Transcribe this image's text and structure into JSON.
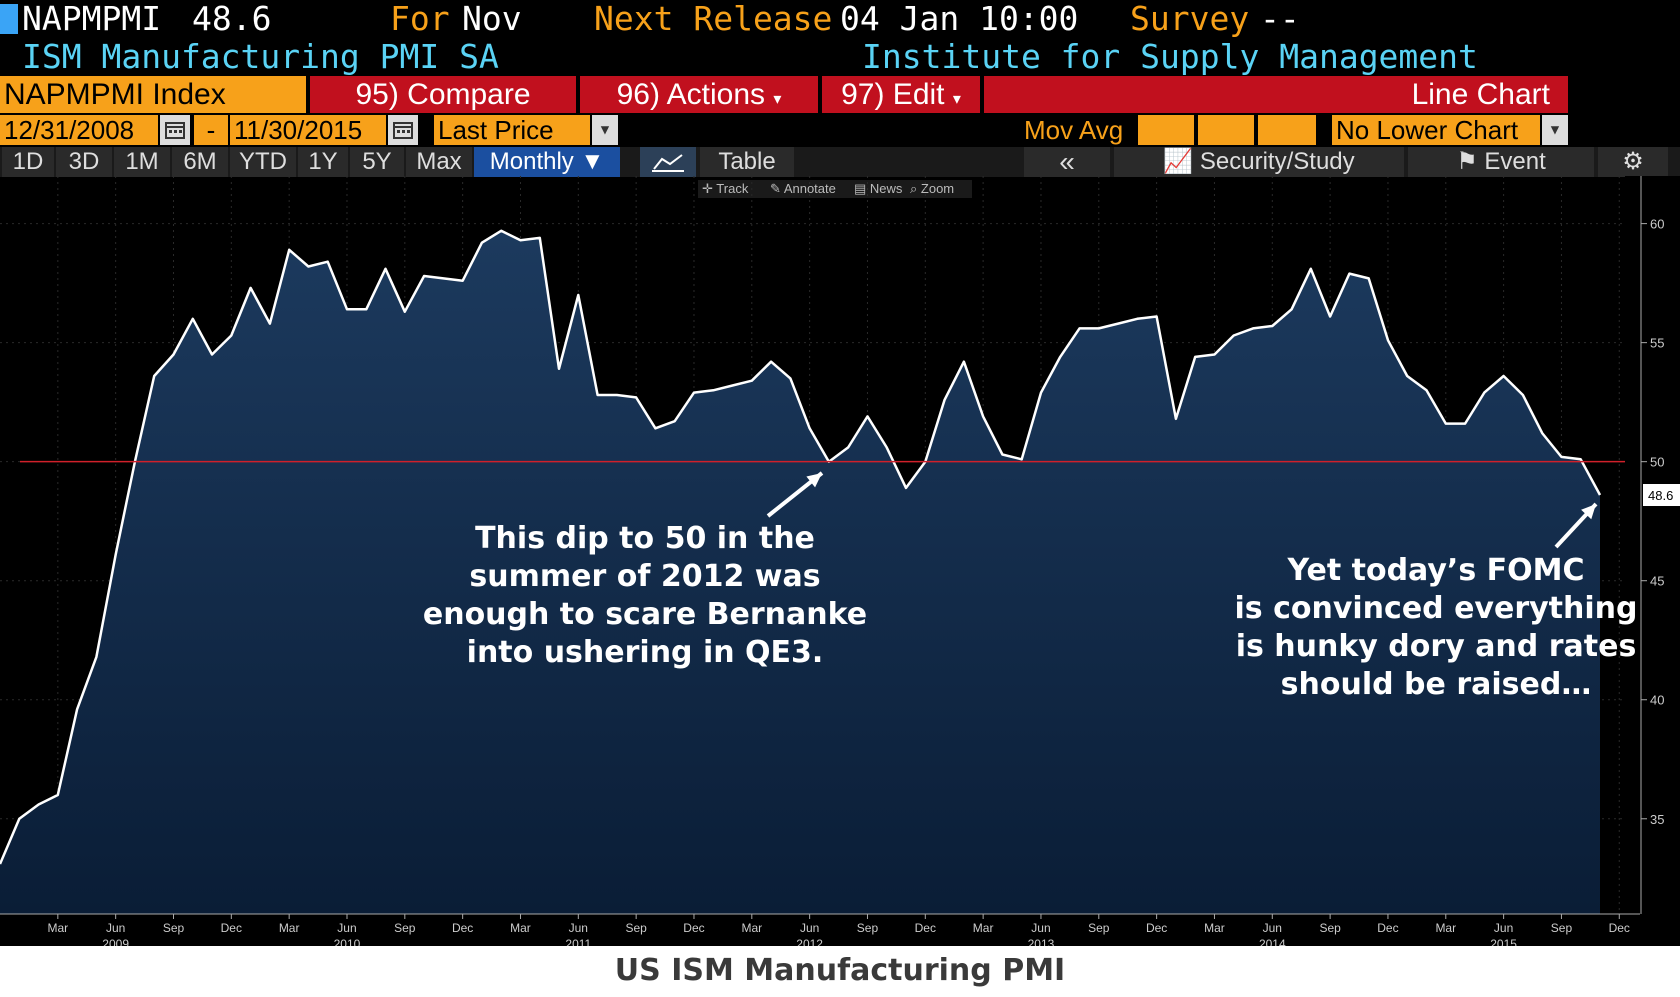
{
  "header": {
    "ticker": "NAPMPMI",
    "last_value": "48.6",
    "for_label": "For",
    "for_month": "Nov",
    "next_release_label": "Next Release",
    "next_release": "04 Jan 10:00",
    "survey_label": "Survey",
    "survey_value": "--",
    "description": "ISM Manufacturing PMI SA",
    "source": "Institute for Supply Management"
  },
  "toolbar": {
    "index_label": "NAPMPMI Index",
    "compare": "95) Compare",
    "actions": "96) Actions",
    "edit": "97) Edit",
    "chart_type": "Line Chart",
    "start_date": "12/31/2008",
    "date_sep": "-",
    "end_date": "11/30/2015",
    "price_field": "Last Price",
    "mov_avg": "Mov Avg",
    "lower_chart": "No Lower Chart"
  },
  "tabs": {
    "periods": [
      "1D",
      "3D",
      "1M",
      "6M",
      "YTD",
      "1Y",
      "5Y",
      "Max"
    ],
    "frequency": "Monthly",
    "table": "Table",
    "back": "«",
    "security_study": "Security/Study",
    "event": "Event"
  },
  "mini_tools": {
    "track": "Track",
    "annotate": "Annotate",
    "news": "News",
    "zoom": "Zoom"
  },
  "annotations": {
    "left": [
      "This dip to 50 in the",
      "summer of 2012 was",
      "enough to scare Bernanke",
      "into ushering in QE3."
    ],
    "right": [
      "Yet today’s FOMC",
      "is convinced everything",
      "is hunky dory and rates",
      "should be raised…"
    ]
  },
  "caption": "US ISM Manufacturing PMI",
  "colors": {
    "amber": "#f7a11a",
    "red": "#c1101e",
    "cyan": "#5ad3f5",
    "area": "#0f2a4a",
    "line": "#ffffff",
    "ref_line": "#d0202a"
  },
  "chart_data": {
    "type": "area",
    "title": "",
    "ylim": [
      31,
      62
    ],
    "yticks": [
      35,
      40,
      45,
      50,
      55,
      60
    ],
    "x_start": "2008-12",
    "frequency": "monthly",
    "reference_line": 50,
    "last_value_label": "48.6",
    "xticks": [
      {
        "label": "Mar",
        "year": "",
        "date": "2009-03"
      },
      {
        "label": "Jun",
        "year": "2009",
        "date": "2009-06"
      },
      {
        "label": "Sep",
        "year": "",
        "date": "2009-09"
      },
      {
        "label": "Dec",
        "year": "",
        "date": "2009-12"
      },
      {
        "label": "Mar",
        "year": "",
        "date": "2010-03"
      },
      {
        "label": "Jun",
        "year": "2010",
        "date": "2010-06"
      },
      {
        "label": "Sep",
        "year": "",
        "date": "2010-09"
      },
      {
        "label": "Dec",
        "year": "",
        "date": "2010-12"
      },
      {
        "label": "Mar",
        "year": "",
        "date": "2011-03"
      },
      {
        "label": "Jun",
        "year": "2011",
        "date": "2011-06"
      },
      {
        "label": "Sep",
        "year": "",
        "date": "2011-09"
      },
      {
        "label": "Dec",
        "year": "",
        "date": "2011-12"
      },
      {
        "label": "Mar",
        "year": "",
        "date": "2012-03"
      },
      {
        "label": "Jun",
        "year": "2012",
        "date": "2012-06"
      },
      {
        "label": "Sep",
        "year": "",
        "date": "2012-09"
      },
      {
        "label": "Dec",
        "year": "",
        "date": "2012-12"
      },
      {
        "label": "Mar",
        "year": "",
        "date": "2013-03"
      },
      {
        "label": "Jun",
        "year": "2013",
        "date": "2013-06"
      },
      {
        "label": "Sep",
        "year": "",
        "date": "2013-09"
      },
      {
        "label": "Dec",
        "year": "",
        "date": "2013-12"
      },
      {
        "label": "Mar",
        "year": "",
        "date": "2014-03"
      },
      {
        "label": "Jun",
        "year": "2014",
        "date": "2014-06"
      },
      {
        "label": "Sep",
        "year": "",
        "date": "2014-09"
      },
      {
        "label": "Dec",
        "year": "",
        "date": "2014-12"
      },
      {
        "label": "Mar",
        "year": "",
        "date": "2015-03"
      },
      {
        "label": "Jun",
        "year": "2015",
        "date": "2015-06"
      },
      {
        "label": "Sep",
        "year": "",
        "date": "2015-09"
      },
      {
        "label": "Dec",
        "year": "",
        "date": "2015-12"
      }
    ],
    "values": [
      33.1,
      35.0,
      35.6,
      36.0,
      39.6,
      41.8,
      46.1,
      50.0,
      53.6,
      54.5,
      56.0,
      54.5,
      55.3,
      57.3,
      55.8,
      58.9,
      58.2,
      58.4,
      56.4,
      56.4,
      58.1,
      56.3,
      57.8,
      57.7,
      57.6,
      59.2,
      59.7,
      59.3,
      59.4,
      53.9,
      57.0,
      52.8,
      52.8,
      52.7,
      51.4,
      51.7,
      52.9,
      53.0,
      53.2,
      53.4,
      54.2,
      53.5,
      51.4,
      50.0,
      50.6,
      51.9,
      50.6,
      48.9,
      50.0,
      52.6,
      54.2,
      51.9,
      50.3,
      50.1,
      52.9,
      54.4,
      55.6,
      55.6,
      55.8,
      56.0,
      56.1,
      51.8,
      54.4,
      54.5,
      55.3,
      55.6,
      55.7,
      56.4,
      58.1,
      56.1,
      57.9,
      57.7,
      55.1,
      53.6,
      53.0,
      51.6,
      51.6,
      52.9,
      53.6,
      52.8,
      51.2,
      50.2,
      50.1,
      48.6
    ]
  }
}
